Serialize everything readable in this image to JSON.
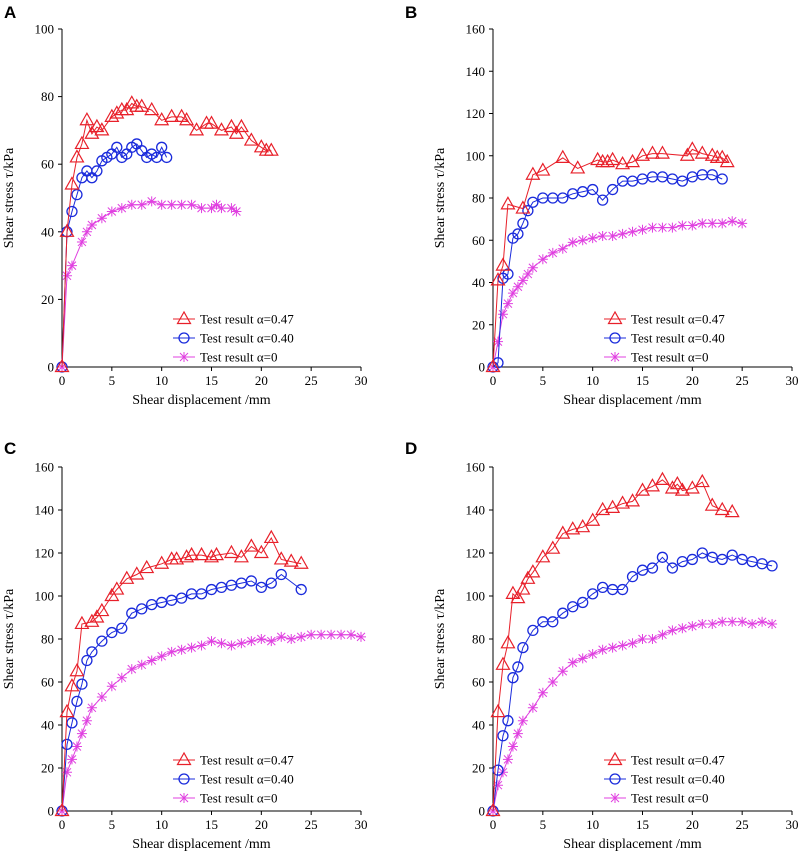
{
  "chart_data": [
    {
      "type": "line",
      "panel_label": "A",
      "xlabel": "Shear displacement /mm",
      "ylabel": "Shear stress τ/kPa",
      "xlim": [
        0,
        30
      ],
      "ylim": [
        0,
        100
      ],
      "xticks": [
        0,
        5,
        10,
        15,
        20,
        25,
        30
      ],
      "yticks": [
        0,
        20,
        40,
        60,
        80,
        100
      ],
      "legend_position": "bottom-right",
      "series": [
        {
          "name": "Test result α=0.47",
          "color": "#e8202a",
          "marker": "triangle",
          "x": [
            0,
            0.5,
            1,
            1.5,
            2,
            2.5,
            3,
            3.5,
            4,
            5,
            5.5,
            6,
            6.5,
            7,
            7.5,
            8,
            9,
            10,
            11,
            12,
            12.5,
            13.5,
            14.5,
            15,
            16,
            17,
            17.5,
            18,
            19,
            20,
            20.5,
            21
          ],
          "y": [
            0,
            40,
            54,
            62,
            66,
            73,
            69,
            71,
            70,
            74,
            75,
            76,
            76,
            78,
            77,
            77,
            76,
            73,
            74,
            74,
            73,
            70,
            72,
            72,
            70,
            71,
            69,
            71,
            67,
            65,
            64,
            64
          ]
        },
        {
          "name": "Test result α=0.40",
          "color": "#1a2bdc",
          "marker": "circle",
          "x": [
            0,
            0.5,
            1,
            1.5,
            2,
            2.5,
            3,
            3.5,
            4,
            4.5,
            5,
            5.5,
            6,
            6.5,
            7,
            7.5,
            8,
            8.5,
            9,
            9.5,
            10,
            10.5
          ],
          "y": [
            0,
            40,
            46,
            51,
            56,
            58,
            56,
            58,
            61,
            62,
            63,
            65,
            62,
            63,
            65,
            66,
            64,
            62,
            63,
            62,
            65,
            62
          ]
        },
        {
          "name": "Test result α=0",
          "color": "#e040e0",
          "marker": "star",
          "x": [
            0,
            0.5,
            1,
            2,
            2.5,
            3,
            4,
            5,
            6,
            7,
            8,
            9,
            10,
            11,
            12,
            13,
            14,
            15,
            15.5,
            16,
            17,
            17.5
          ],
          "y": [
            0,
            27,
            30,
            37,
            40,
            42,
            44,
            46,
            47,
            48,
            48,
            49,
            48,
            48,
            48,
            48,
            47,
            47,
            48,
            47,
            47,
            46
          ]
        }
      ]
    },
    {
      "type": "line",
      "panel_label": "B",
      "xlabel": "Shear displacement /mm",
      "ylabel": "Shear stress τ/kPa",
      "xlim": [
        0,
        30
      ],
      "ylim": [
        0,
        160
      ],
      "xticks": [
        0,
        5,
        10,
        15,
        20,
        25,
        30
      ],
      "yticks": [
        0,
        20,
        40,
        60,
        80,
        100,
        120,
        140,
        160
      ],
      "legend_position": "bottom-right",
      "series": [
        {
          "name": "Test result α=0.47",
          "color": "#e8202a",
          "marker": "triangle",
          "x": [
            0,
            0.5,
            1,
            1.5,
            3,
            4,
            5,
            7,
            8.5,
            10.5,
            11,
            11.5,
            12,
            13,
            14,
            15,
            16,
            17,
            19.5,
            20,
            21,
            22,
            22.5,
            23,
            23.5
          ],
          "y": [
            0,
            41,
            48,
            77,
            75,
            91,
            93,
            99,
            94,
            98,
            97,
            97,
            98,
            96,
            97,
            100,
            101,
            101,
            100,
            103,
            101,
            100,
            99,
            99,
            97
          ]
        },
        {
          "name": "Test result α=0.40",
          "color": "#1a2bdc",
          "marker": "circle",
          "x": [
            0,
            0.5,
            1,
            1.5,
            2,
            2.5,
            3,
            3.5,
            4,
            5,
            6,
            7,
            8,
            9,
            10,
            11,
            12,
            13,
            14,
            15,
            16,
            17,
            18,
            19,
            20,
            21,
            22,
            23
          ],
          "y": [
            0,
            2,
            42,
            44,
            61,
            63,
            68,
            74,
            78,
            80,
            80,
            80,
            82,
            83,
            84,
            79,
            84,
            88,
            88,
            89,
            90,
            90,
            89,
            88,
            90,
            91,
            91,
            89
          ]
        },
        {
          "name": "Test result α=0",
          "color": "#e040e0",
          "marker": "star",
          "x": [
            0,
            0.5,
            1,
            1.5,
            2,
            2.5,
            3,
            3.5,
            4,
            5,
            6,
            7,
            8,
            9,
            10,
            11,
            12,
            13,
            14,
            15,
            16,
            17,
            18,
            19,
            20,
            21,
            22,
            23,
            24,
            25
          ],
          "y": [
            0,
            12,
            25,
            30,
            35,
            38,
            41,
            44,
            47,
            51,
            54,
            56,
            59,
            60,
            61,
            62,
            62,
            63,
            64,
            65,
            66,
            66,
            66,
            67,
            67,
            68,
            68,
            68,
            69,
            68
          ]
        }
      ]
    },
    {
      "type": "line",
      "panel_label": "C",
      "xlabel": "Shear displacement /mm",
      "ylabel": "Shear stress τ/kPa",
      "xlim": [
        0,
        30
      ],
      "ylim": [
        0,
        160
      ],
      "xticks": [
        0,
        5,
        10,
        15,
        20,
        25,
        30
      ],
      "yticks": [
        0,
        20,
        40,
        60,
        80,
        100,
        120,
        140,
        160
      ],
      "legend_position": "bottom-right",
      "series": [
        {
          "name": "Test result α=0.47",
          "color": "#e8202a",
          "marker": "triangle",
          "x": [
            0,
            0.5,
            1,
            1.5,
            2,
            3,
            3.5,
            4,
            5,
            5.5,
            6.5,
            7.5,
            8.5,
            10,
            11,
            11.5,
            12.5,
            13,
            14,
            15,
            15.5,
            17,
            18,
            19,
            20,
            21,
            22,
            23,
            24
          ],
          "y": [
            0,
            46,
            58,
            65,
            87,
            88,
            90,
            93,
            100,
            103,
            108,
            110,
            113,
            115,
            117,
            117,
            118,
            119,
            119,
            118,
            119,
            120,
            118,
            123,
            120,
            127,
            117,
            116,
            115
          ]
        },
        {
          "name": "Test result α=0.40",
          "color": "#1a2bdc",
          "marker": "circle",
          "x": [
            0,
            0.5,
            1,
            1.5,
            2,
            2.5,
            3,
            4,
            5,
            6,
            7,
            8,
            9,
            10,
            11,
            12,
            13,
            14,
            15,
            16,
            17,
            18,
            19,
            20,
            21,
            22,
            24
          ],
          "y": [
            0,
            31,
            41,
            51,
            59,
            70,
            74,
            79,
            83,
            85,
            92,
            94,
            96,
            97,
            98,
            99,
            101,
            101,
            103,
            104,
            105,
            106,
            107,
            104,
            106,
            110,
            103
          ]
        },
        {
          "name": "Test result α=0",
          "color": "#e040e0",
          "marker": "star",
          "x": [
            0,
            0.5,
            1,
            1.5,
            2,
            2.5,
            3,
            4,
            5,
            6,
            7,
            8,
            9,
            10,
            11,
            12,
            13,
            14,
            15,
            16,
            17,
            18,
            19,
            20,
            21,
            22,
            23,
            24,
            25,
            26,
            27,
            28,
            29,
            30
          ],
          "y": [
            0,
            18,
            24,
            30,
            36,
            42,
            48,
            53,
            58,
            62,
            66,
            68,
            70,
            72,
            74,
            75,
            76,
            77,
            79,
            78,
            77,
            78,
            79,
            80,
            79,
            81,
            80,
            81,
            82,
            82,
            82,
            82,
            82,
            81
          ]
        }
      ]
    },
    {
      "type": "line",
      "panel_label": "D",
      "xlabel": "Shear displacement /mm",
      "ylabel": "Shear stress τ/kPa",
      "xlim": [
        0,
        30
      ],
      "ylim": [
        0,
        160
      ],
      "xticks": [
        0,
        5,
        10,
        15,
        20,
        25,
        30
      ],
      "yticks": [
        0,
        20,
        40,
        60,
        80,
        100,
        120,
        140,
        160
      ],
      "legend_position": "bottom-right",
      "series": [
        {
          "name": "Test result α=0.47",
          "color": "#e8202a",
          "marker": "triangle",
          "x": [
            0,
            0.5,
            1,
            1.5,
            2,
            2.5,
            3,
            3.5,
            4,
            5,
            6,
            7,
            8,
            9,
            10,
            11,
            12,
            13,
            14,
            15,
            16,
            17,
            18,
            18.5,
            19,
            20,
            21,
            22,
            23,
            24
          ],
          "y": [
            0,
            46,
            68,
            78,
            101,
            99,
            103,
            108,
            111,
            118,
            122,
            129,
            131,
            132,
            135,
            140,
            141,
            143,
            144,
            149,
            151,
            154,
            150,
            152,
            149,
            150,
            153,
            142,
            140,
            139
          ]
        },
        {
          "name": "Test result α=0.40",
          "color": "#1a2bdc",
          "marker": "circle",
          "x": [
            0,
            0.5,
            1,
            1.5,
            2,
            2.5,
            3,
            4,
            5,
            6,
            7,
            8,
            9,
            10,
            11,
            12,
            13,
            14,
            15,
            16,
            17,
            18,
            19,
            20,
            21,
            22,
            23,
            24,
            25,
            26,
            27,
            28
          ],
          "y": [
            0,
            19,
            35,
            42,
            62,
            67,
            76,
            84,
            88,
            88,
            92,
            95,
            97,
            101,
            104,
            103,
            103,
            109,
            112,
            113,
            118,
            113,
            116,
            117,
            120,
            118,
            117,
            119,
            117,
            116,
            115,
            114
          ]
        },
        {
          "name": "Test result α=0",
          "color": "#e040e0",
          "marker": "star",
          "x": [
            0,
            0.5,
            1,
            1.5,
            2,
            2.5,
            3,
            4,
            5,
            6,
            7,
            8,
            9,
            10,
            11,
            12,
            13,
            14,
            15,
            16,
            17,
            18,
            19,
            20,
            21,
            22,
            23,
            24,
            25,
            26,
            27,
            28
          ],
          "y": [
            0,
            12,
            18,
            24,
            30,
            36,
            42,
            48,
            55,
            60,
            65,
            69,
            71,
            73,
            75,
            76,
            77,
            78,
            80,
            80,
            82,
            84,
            85,
            86,
            87,
            87,
            88,
            88,
            88,
            87,
            88,
            87
          ]
        }
      ]
    }
  ]
}
